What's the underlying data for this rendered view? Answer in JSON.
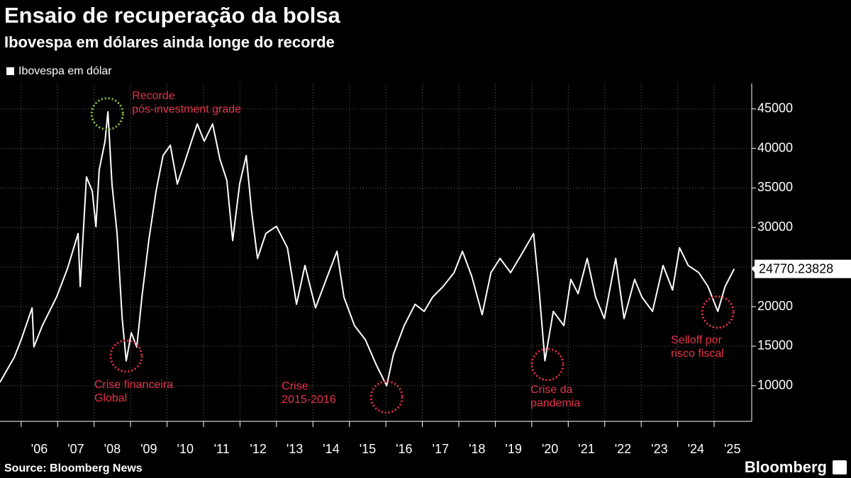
{
  "chart_data": {
    "type": "line",
    "title": "Ensaio de recuperação da bolsa",
    "subtitle": "Ibovespa em dólares ainda longe do recorde",
    "source": "Source: Bloomberg News",
    "brand": "Bloomberg",
    "xlim": [
      2005.42,
      2026.03
    ],
    "ylim": [
      5500,
      48200
    ],
    "xticks": [
      {
        "value": 2006,
        "label": "'06"
      },
      {
        "value": 2007,
        "label": "'07"
      },
      {
        "value": 2008,
        "label": "'08"
      },
      {
        "value": 2009,
        "label": "'09"
      },
      {
        "value": 2010,
        "label": "'10"
      },
      {
        "value": 2011,
        "label": "'11"
      },
      {
        "value": 2012,
        "label": "'12"
      },
      {
        "value": 2013,
        "label": "'13"
      },
      {
        "value": 2014,
        "label": "'14"
      },
      {
        "value": 2015,
        "label": "'15"
      },
      {
        "value": 2016,
        "label": "'16"
      },
      {
        "value": 2017,
        "label": "'17"
      },
      {
        "value": 2018,
        "label": "'18"
      },
      {
        "value": 2019,
        "label": "'19"
      },
      {
        "value": 2020,
        "label": "'20"
      },
      {
        "value": 2021,
        "label": "'21"
      },
      {
        "value": 2022,
        "label": "'22"
      },
      {
        "value": 2023,
        "label": "'23"
      },
      {
        "value": 2024,
        "label": "'24"
      },
      {
        "value": 2025,
        "label": "'25"
      }
    ],
    "yticks": [
      10000,
      15000,
      20000,
      25000,
      30000,
      35000,
      40000,
      45000
    ],
    "grid": true,
    "x": [
      2005.42,
      2005.81,
      2006.0,
      2006.3,
      2006.35,
      2006.58,
      2006.97,
      2007.27,
      2007.56,
      2007.62,
      2007.79,
      2007.95,
      2008.05,
      2008.14,
      2008.3,
      2008.38,
      2008.49,
      2008.63,
      2008.77,
      2008.88,
      2009.02,
      2009.17,
      2009.31,
      2009.5,
      2009.7,
      2009.89,
      2010.09,
      2010.28,
      2010.48,
      2010.67,
      2010.83,
      2011.02,
      2011.25,
      2011.45,
      2011.64,
      2011.8,
      2011.99,
      2012.17,
      2012.32,
      2012.48,
      2012.71,
      2013.0,
      2013.3,
      2013.55,
      2013.78,
      2014.07,
      2014.4,
      2014.66,
      2014.85,
      2015.14,
      2015.44,
      2015.73,
      2016.02,
      2016.21,
      2016.5,
      2016.8,
      2017.05,
      2017.28,
      2017.57,
      2017.87,
      2018.1,
      2018.35,
      2018.64,
      2018.88,
      2019.13,
      2019.42,
      2019.71,
      2020.05,
      2020.2,
      2020.36,
      2020.59,
      2020.88,
      2021.07,
      2021.27,
      2021.52,
      2021.75,
      2021.99,
      2022.3,
      2022.53,
      2022.82,
      2023.02,
      2023.31,
      2023.6,
      2023.86,
      2024.05,
      2024.29,
      2024.58,
      2024.83,
      2025.1,
      2025.3,
      2025.55
    ],
    "series": [
      {
        "name": "Ibovespa em dólar",
        "color": "#ffffff",
        "values": [
          10450,
          13600,
          15800,
          19850,
          14900,
          17600,
          21200,
          24800,
          29250,
          22550,
          36400,
          34600,
          30100,
          37300,
          40900,
          44650,
          35500,
          29250,
          18500,
          13150,
          16700,
          14900,
          21200,
          28350,
          34600,
          39100,
          40400,
          35500,
          38200,
          40900,
          43100,
          40900,
          43100,
          38650,
          35950,
          28350,
          35500,
          39100,
          31950,
          26100,
          29250,
          30150,
          27450,
          20300,
          25200,
          19850,
          23900,
          27000,
          21200,
          17600,
          15800,
          12700,
          10000,
          14000,
          17600,
          20300,
          19400,
          21200,
          22550,
          24300,
          27000,
          23900,
          19000,
          24300,
          26100,
          24300,
          26550,
          29250,
          22100,
          13150,
          19400,
          17600,
          23450,
          21650,
          26100,
          21200,
          18500,
          26100,
          18500,
          23450,
          21200,
          19400,
          25200,
          22100,
          27450,
          25200,
          24300,
          22550,
          19400,
          22550,
          24770.23828
        ]
      }
    ],
    "annotations": [
      {
        "text": [
          "Recorde",
          "pós-investment grade"
        ],
        "x": 2008.36,
        "y": 44373,
        "color": "#8dc63f",
        "text_color": "#e8334a"
      },
      {
        "text": [
          "Crise financeira",
          "Global"
        ],
        "x": 2008.88,
        "y": 13760,
        "color": "#e8334a",
        "text_color": "#e8334a"
      },
      {
        "text": [
          "Crise",
          "2015-2016"
        ],
        "x": 2016.02,
        "y": 8568,
        "color": "#e8334a",
        "text_color": "#e8334a"
      },
      {
        "text": [
          "Crise da",
          "pandemia"
        ],
        "x": 2020.43,
        "y": 12686,
        "color": "#e8334a",
        "text_color": "#e8334a"
      },
      {
        "text": [
          "Selloff por",
          "risco fiscal"
        ],
        "x": 2025.1,
        "y": 19309,
        "color": "#e8334a",
        "text_color": "#e8334a"
      }
    ]
  }
}
